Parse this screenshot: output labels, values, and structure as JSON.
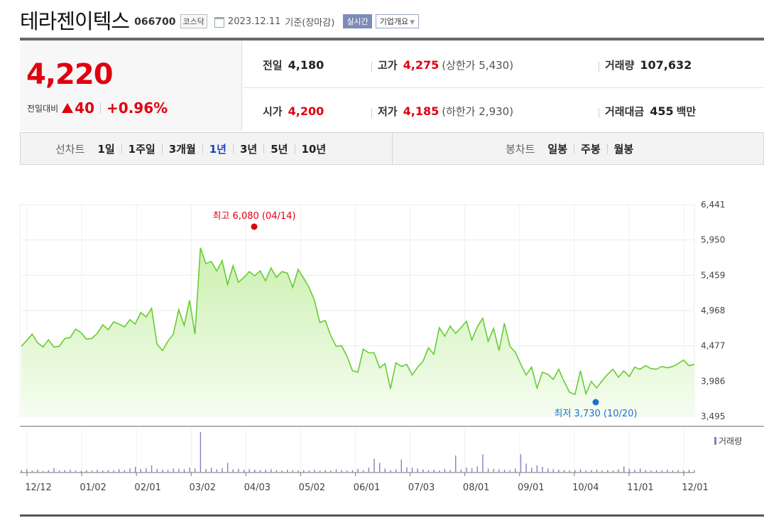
{
  "header": {
    "name": "테라젠이텍스",
    "code": "066700",
    "market": "코스닥",
    "date": "2023.12.11",
    "basis": "기준(장마감)",
    "realtime_btn": "실시간",
    "info_btn": "기업개요"
  },
  "quote": {
    "price": "4,220",
    "change_label": "전일대비",
    "change_amount": "40",
    "change_pct": "+0.96%",
    "prev_close_label": "전일",
    "prev_close": "4,180",
    "high_label": "고가",
    "high": "4,275",
    "upper_limit_label": "상한가",
    "upper_limit": "5,430",
    "volume_label": "거래량",
    "volume": "107,632",
    "open_label": "시가",
    "open": "4,200",
    "low_label": "저가",
    "low": "4,185",
    "lower_limit_label": "하한가",
    "lower_limit": "2,930",
    "amount_label": "거래대금",
    "amount": "455",
    "amount_unit": "백만"
  },
  "periods": {
    "line_label": "선차트",
    "line_options": [
      "1일",
      "1주일",
      "3개월",
      "1년",
      "3년",
      "5년",
      "10년"
    ],
    "selected": "1년",
    "candle_label": "봉차트",
    "candle_options": [
      "일봉",
      "주봉",
      "월봉"
    ]
  },
  "chart_data": {
    "type": "area",
    "y_ticks": [
      "6,441",
      "5,950",
      "5,459",
      "4,968",
      "4,477",
      "3,986",
      "3,495"
    ],
    "ylim": [
      3495,
      6441
    ],
    "x_ticks": [
      "12/12",
      "01/02",
      "02/01",
      "03/02",
      "04/03",
      "05/02",
      "06/01",
      "07/03",
      "08/01",
      "09/01",
      "10/04",
      "11/01",
      "12/01"
    ],
    "high_annotation": "최고 6,080 (04/14)",
    "low_annotation": "최저 3,730 (10/20)",
    "volume_legend": "거래량",
    "colors": {
      "line": "#66cc33",
      "fill_top": "#ccf0b0",
      "fill_bottom": "#f5fdf0",
      "high": "#e0000f",
      "low": "#1e6ed8",
      "volume": "#8a7dbd"
    },
    "x": [
      0,
      2,
      4,
      6,
      8,
      10,
      12,
      14,
      16,
      18,
      20,
      22,
      24,
      26,
      28,
      30,
      32,
      34,
      36,
      38,
      40,
      42,
      44,
      46,
      48,
      50,
      52,
      54,
      56,
      58,
      60,
      62,
      64,
      66,
      68,
      70,
      72,
      74,
      76,
      78,
      80,
      82,
      84,
      86,
      88,
      90,
      92,
      94,
      96,
      98,
      100,
      102,
      104,
      106,
      108,
      110,
      112,
      114,
      116,
      118,
      120,
      122,
      124,
      126,
      128,
      130,
      132,
      134,
      136,
      138,
      140,
      142,
      144,
      146,
      148,
      150,
      152,
      154,
      156,
      158,
      160,
      162,
      164,
      166,
      168,
      170,
      172,
      174,
      176,
      178,
      180,
      182,
      184,
      186,
      188,
      190,
      192,
      194,
      196,
      198,
      200,
      202,
      204,
      206,
      208,
      210,
      212,
      214,
      216,
      218,
      220,
      222,
      224,
      226,
      228,
      230,
      232,
      234,
      236,
      238,
      240,
      242,
      244,
      246,
      248
    ],
    "prices": [
      4470,
      4550,
      4640,
      4520,
      4460,
      4560,
      4460,
      4470,
      4580,
      4590,
      4710,
      4660,
      4570,
      4580,
      4650,
      4770,
      4700,
      4810,
      4780,
      4740,
      4840,
      4780,
      4940,
      4880,
      5000,
      4500,
      4410,
      4540,
      4640,
      4980,
      4760,
      5110,
      4640,
      5840,
      5620,
      5650,
      5520,
      5660,
      5330,
      5590,
      5360,
      5430,
      5510,
      5450,
      5520,
      5380,
      5560,
      5430,
      5510,
      5490,
      5290,
      5540,
      5420,
      5290,
      5110,
      4800,
      4830,
      4620,
      4470,
      4480,
      4330,
      4130,
      4110,
      4430,
      4380,
      4380,
      4170,
      4230,
      3880,
      4240,
      4190,
      4220,
      4070,
      4180,
      4260,
      4450,
      4360,
      4730,
      4610,
      4750,
      4650,
      4730,
      4820,
      4560,
      4740,
      4860,
      4540,
      4720,
      4410,
      4790,
      4470,
      4390,
      4220,
      4070,
      4180,
      3890,
      4110,
      4080,
      4010,
      4150,
      3980,
      3830,
      3800,
      4130,
      3810,
      3980,
      3890,
      3990,
      4080,
      4150,
      4040,
      4130,
      4050,
      4180,
      4150,
      4200,
      4160,
      4150,
      4190,
      4170,
      4190,
      4230,
      4280,
      4200,
      4220
    ],
    "volumes": [
      0.06,
      0.08,
      0.05,
      0.07,
      0.04,
      0.06,
      0.11,
      0.05,
      0.06,
      0.07,
      0.05,
      0.04,
      0.06,
      0.05,
      0.07,
      0.05,
      0.06,
      0.05,
      0.08,
      0.06,
      0.1,
      0.14,
      0.09,
      0.11,
      0.18,
      0.09,
      0.07,
      0.06,
      0.1,
      0.09,
      0.08,
      0.12,
      0.1,
      1.0,
      0.09,
      0.12,
      0.08,
      0.11,
      0.24,
      0.08,
      0.09,
      0.07,
      0.08,
      0.07,
      0.06,
      0.07,
      0.08,
      0.06,
      0.05,
      0.07,
      0.06,
      0.05,
      0.06,
      0.05,
      0.07,
      0.05,
      0.06,
      0.05,
      0.08,
      0.06,
      0.05,
      0.06,
      0.09,
      0.05,
      0.12,
      0.34,
      0.24,
      0.1,
      0.06,
      0.08,
      0.32,
      0.13,
      0.12,
      0.1,
      0.08,
      0.06,
      0.07,
      0.05,
      0.09,
      0.06,
      0.42,
      0.07,
      0.12,
      0.11,
      0.15,
      0.45,
      0.1,
      0.09,
      0.08,
      0.07,
      0.06,
      0.1,
      0.45,
      0.22,
      0.12,
      0.18,
      0.14,
      0.1,
      0.08,
      0.07,
      0.06,
      0.05,
      0.06,
      0.08,
      0.05,
      0.06,
      0.07,
      0.05,
      0.06,
      0.05,
      0.08,
      0.15,
      0.09,
      0.07,
      0.1,
      0.06,
      0.05,
      0.06,
      0.05,
      0.07,
      0.05,
      0.06,
      0.05,
      0.07,
      0.06
    ]
  }
}
